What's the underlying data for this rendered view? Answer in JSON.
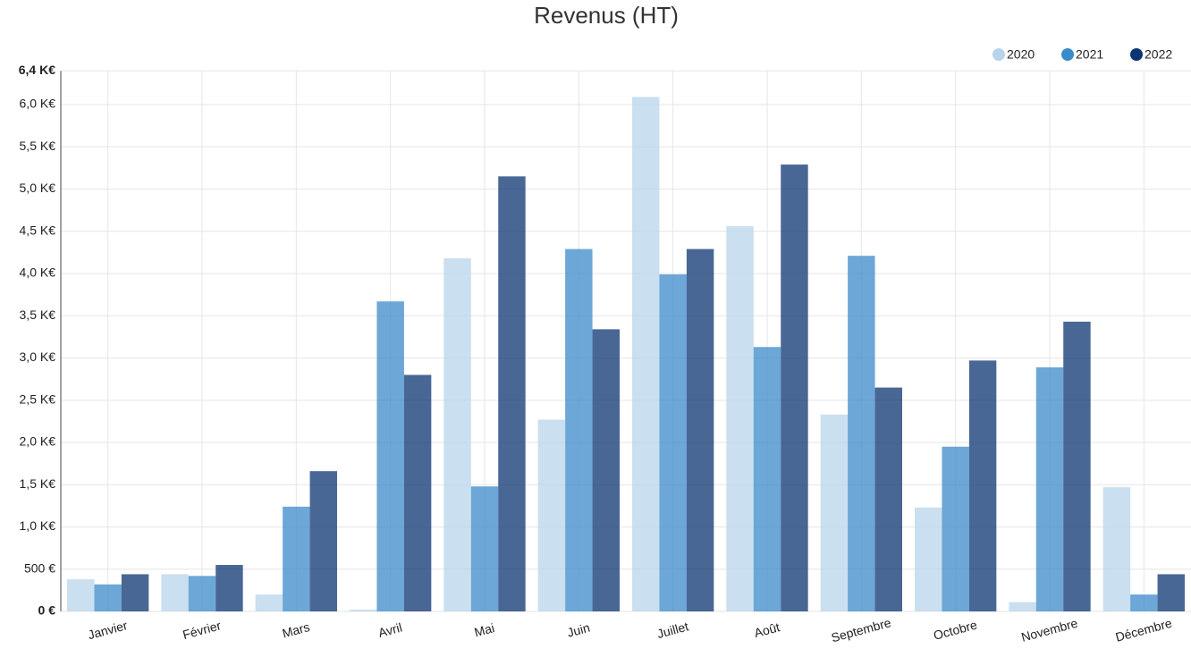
{
  "chart_data": {
    "type": "bar",
    "title": "Revenus (HT)",
    "categories": [
      "Janvier",
      "Février",
      "Mars",
      "Avril",
      "Mai",
      "Juin",
      "Juillet",
      "Août",
      "Septembre",
      "Octobre",
      "Novembre",
      "Décembre"
    ],
    "series": [
      {
        "name": "2020",
        "color": "#b8d4ea",
        "values": [
          380,
          440,
          200,
          20,
          4180,
          2270,
          6090,
          4560,
          2330,
          1230,
          110,
          1470
        ]
      },
      {
        "name": "2021",
        "color": "#3b8ac9",
        "values": [
          320,
          420,
          1240,
          3670,
          1480,
          4290,
          3990,
          3130,
          4210,
          1950,
          2890,
          200
        ]
      },
      {
        "name": "2022",
        "color": "#0c3471",
        "values": [
          440,
          550,
          1660,
          2800,
          5150,
          3340,
          4290,
          5290,
          2650,
          2970,
          3430,
          440
        ]
      }
    ],
    "ylim": [
      0,
      6400
    ],
    "yticks": [
      {
        "value": 0,
        "label": "0 €"
      },
      {
        "value": 500,
        "label": "500 €"
      },
      {
        "value": 1000,
        "label": "1,0 K€"
      },
      {
        "value": 1500,
        "label": "1,5 K€"
      },
      {
        "value": 2000,
        "label": "2,0 K€"
      },
      {
        "value": 2500,
        "label": "2,5 K€"
      },
      {
        "value": 3000,
        "label": "3,0 K€"
      },
      {
        "value": 3500,
        "label": "3,5 K€"
      },
      {
        "value": 4000,
        "label": "4,0 K€"
      },
      {
        "value": 4500,
        "label": "4,5 K€"
      },
      {
        "value": 5000,
        "label": "5,0 K€"
      },
      {
        "value": 5500,
        "label": "5,5 K€"
      },
      {
        "value": 6000,
        "label": "6,0 K€"
      },
      {
        "value": 6400,
        "label": "6,4 K€"
      }
    ],
    "grid": true,
    "legend": "top-right"
  }
}
